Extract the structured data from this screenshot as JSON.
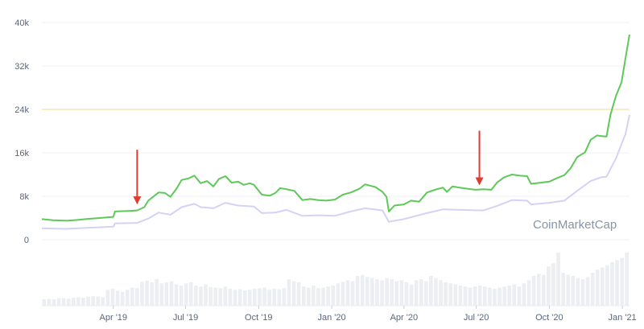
{
  "chart_data": {
    "type": "line",
    "title": "",
    "xlabel": "",
    "ylabel": "",
    "watermark": "CoinMarketCap",
    "ylim": [
      0,
      40000
    ],
    "y_ticks": [
      {
        "value": 0,
        "label": "0"
      },
      {
        "value": 8000,
        "label": "8k"
      },
      {
        "value": 16000,
        "label": "16k"
      },
      {
        "value": 24000,
        "label": "24k"
      },
      {
        "value": 32000,
        "label": "32k"
      },
      {
        "value": 40000,
        "label": "40k"
      }
    ],
    "x_range": [
      "2019-01-01",
      "2021-01-10"
    ],
    "x_ticks": [
      {
        "date": "2019-04-01",
        "label": "Apr '19"
      },
      {
        "date": "2019-07-01",
        "label": "Jul '19"
      },
      {
        "date": "2019-10-01",
        "label": "Oct '19"
      },
      {
        "date": "2020-01-01",
        "label": "Jan '20"
      },
      {
        "date": "2020-04-01",
        "label": "Apr '20"
      },
      {
        "date": "2020-07-01",
        "label": "Jul '20"
      },
      {
        "date": "2020-10-01",
        "label": "Oct '20"
      },
      {
        "date": "2021-01-01",
        "label": "Jan '21"
      }
    ],
    "reference_line": {
      "value": 24000,
      "color": "#f2e3a6"
    },
    "annotations": [
      {
        "type": "arrow",
        "date": "2019-05-01",
        "value": 6500,
        "color": "#e03c31"
      },
      {
        "type": "arrow",
        "date": "2020-07-05",
        "value": 10000,
        "color": "#e03c31"
      }
    ],
    "series": [
      {
        "color": "#5fc85a",
        "values": [
          [
            "2019-01-01",
            3800
          ],
          [
            "2019-01-15",
            3600
          ],
          [
            "2019-02-01",
            3500
          ],
          [
            "2019-02-15",
            3650
          ],
          [
            "2019-03-01",
            3850
          ],
          [
            "2019-03-15",
            4000
          ],
          [
            "2019-04-01",
            4200
          ],
          [
            "2019-04-03",
            5200
          ],
          [
            "2019-04-20",
            5300
          ],
          [
            "2019-05-01",
            5400
          ],
          [
            "2019-05-10",
            6000
          ],
          [
            "2019-05-15",
            7200
          ],
          [
            "2019-05-28",
            8700
          ],
          [
            "2019-06-05",
            8600
          ],
          [
            "2019-06-12",
            7900
          ],
          [
            "2019-06-20",
            9500
          ],
          [
            "2019-06-26",
            11000
          ],
          [
            "2019-07-05",
            11300
          ],
          [
            "2019-07-12",
            11800
          ],
          [
            "2019-07-20",
            10400
          ],
          [
            "2019-07-28",
            10800
          ],
          [
            "2019-08-05",
            9800
          ],
          [
            "2019-08-12",
            11200
          ],
          [
            "2019-08-20",
            11700
          ],
          [
            "2019-08-28",
            10500
          ],
          [
            "2019-09-05",
            10700
          ],
          [
            "2019-09-12",
            10100
          ],
          [
            "2019-09-20",
            10400
          ],
          [
            "2019-09-25",
            10100
          ],
          [
            "2019-10-05",
            8300
          ],
          [
            "2019-10-15",
            8100
          ],
          [
            "2019-10-22",
            8600
          ],
          [
            "2019-10-28",
            9500
          ],
          [
            "2019-11-05",
            9300
          ],
          [
            "2019-11-15",
            9000
          ],
          [
            "2019-11-25",
            7300
          ],
          [
            "2019-12-05",
            7500
          ],
          [
            "2019-12-15",
            7300
          ],
          [
            "2019-12-25",
            7200
          ],
          [
            "2020-01-05",
            7400
          ],
          [
            "2020-01-15",
            8300
          ],
          [
            "2020-01-25",
            8700
          ],
          [
            "2020-02-05",
            9400
          ],
          [
            "2020-02-12",
            10200
          ],
          [
            "2020-02-25",
            9700
          ],
          [
            "2020-03-05",
            8800
          ],
          [
            "2020-03-10",
            7900
          ],
          [
            "2020-03-13",
            5200
          ],
          [
            "2020-03-20",
            6300
          ],
          [
            "2020-04-01",
            6500
          ],
          [
            "2020-04-10",
            7200
          ],
          [
            "2020-04-20",
            7000
          ],
          [
            "2020-04-30",
            8700
          ],
          [
            "2020-05-10",
            9200
          ],
          [
            "2020-05-20",
            9600
          ],
          [
            "2020-05-25",
            8800
          ],
          [
            "2020-06-01",
            9800
          ],
          [
            "2020-06-10",
            9600
          ],
          [
            "2020-06-20",
            9400
          ],
          [
            "2020-06-30",
            9200
          ],
          [
            "2020-07-10",
            9300
          ],
          [
            "2020-07-20",
            9200
          ],
          [
            "2020-07-27",
            10500
          ],
          [
            "2020-08-05",
            11500
          ],
          [
            "2020-08-15",
            12000
          ],
          [
            "2020-08-25",
            11800
          ],
          [
            "2020-09-03",
            11700
          ],
          [
            "2020-09-08",
            10300
          ],
          [
            "2020-09-20",
            10500
          ],
          [
            "2020-10-01",
            10700
          ],
          [
            "2020-10-10",
            11300
          ],
          [
            "2020-10-20",
            11900
          ],
          [
            "2020-10-28",
            13200
          ],
          [
            "2020-11-05",
            15200
          ],
          [
            "2020-11-15",
            16100
          ],
          [
            "2020-11-22",
            18400
          ],
          [
            "2020-11-30",
            19200
          ],
          [
            "2020-12-05",
            19100
          ],
          [
            "2020-12-12",
            19000
          ],
          [
            "2020-12-17",
            23000
          ],
          [
            "2020-12-24",
            26500
          ],
          [
            "2020-12-31",
            29000
          ],
          [
            "2021-01-05",
            33500
          ],
          [
            "2021-01-10",
            37800
          ]
        ]
      },
      {
        "color": "#d4d2f5",
        "values": [
          [
            "2019-01-01",
            2100
          ],
          [
            "2019-02-01",
            2000
          ],
          [
            "2019-03-01",
            2200
          ],
          [
            "2019-04-01",
            2400
          ],
          [
            "2019-04-03",
            3000
          ],
          [
            "2019-05-01",
            3100
          ],
          [
            "2019-05-15",
            3900
          ],
          [
            "2019-05-28",
            5000
          ],
          [
            "2019-06-12",
            4600
          ],
          [
            "2019-06-26",
            6000
          ],
          [
            "2019-07-12",
            6600
          ],
          [
            "2019-07-20",
            6000
          ],
          [
            "2019-08-05",
            5800
          ],
          [
            "2019-08-20",
            6800
          ],
          [
            "2019-09-05",
            6300
          ],
          [
            "2019-09-25",
            6100
          ],
          [
            "2019-10-05",
            4900
          ],
          [
            "2019-10-22",
            5000
          ],
          [
            "2019-11-05",
            5500
          ],
          [
            "2019-11-25",
            4400
          ],
          [
            "2019-12-15",
            4500
          ],
          [
            "2020-01-05",
            4400
          ],
          [
            "2020-01-25",
            5200
          ],
          [
            "2020-02-12",
            5800
          ],
          [
            "2020-03-05",
            5400
          ],
          [
            "2020-03-13",
            3300
          ],
          [
            "2020-04-01",
            3800
          ],
          [
            "2020-04-30",
            4900
          ],
          [
            "2020-05-20",
            5600
          ],
          [
            "2020-06-10",
            5500
          ],
          [
            "2020-07-10",
            5400
          ],
          [
            "2020-07-27",
            6200
          ],
          [
            "2020-08-15",
            7300
          ],
          [
            "2020-09-03",
            7200
          ],
          [
            "2020-09-08",
            6500
          ],
          [
            "2020-10-01",
            6800
          ],
          [
            "2020-10-20",
            7200
          ],
          [
            "2020-11-05",
            9000
          ],
          [
            "2020-11-22",
            10800
          ],
          [
            "2020-12-05",
            11500
          ],
          [
            "2020-12-12",
            11600
          ],
          [
            "2020-12-24",
            15000
          ],
          [
            "2021-01-05",
            19500
          ],
          [
            "2021-01-10",
            23000
          ]
        ]
      }
    ],
    "volume": {
      "color": "#eceef2",
      "max": 100,
      "values": [
        12,
        13,
        12,
        14,
        14,
        13,
        15,
        16,
        15,
        17,
        18,
        17,
        16,
        30,
        32,
        28,
        26,
        30,
        34,
        33,
        45,
        47,
        44,
        50,
        42,
        44,
        46,
        40,
        38,
        42,
        44,
        38,
        36,
        40,
        35,
        34,
        33,
        36,
        32,
        30,
        31,
        29,
        30,
        32,
        33,
        34,
        30,
        32,
        31,
        33,
        50,
        46,
        44,
        36,
        34,
        38,
        33,
        34,
        36,
        38,
        42,
        45,
        48,
        46,
        56,
        58,
        54,
        52,
        50,
        48,
        52,
        50,
        46,
        48,
        44,
        40,
        48,
        50,
        46,
        56,
        52,
        48,
        44,
        42,
        40,
        38,
        36,
        34,
        36,
        38,
        36,
        34,
        32,
        34,
        36,
        38,
        40,
        36,
        42,
        48,
        56,
        60,
        58,
        74,
        80,
        100,
        62,
        58,
        56,
        52,
        50,
        54,
        62,
        68,
        72,
        76,
        82,
        86,
        90,
        100
      ]
    }
  }
}
